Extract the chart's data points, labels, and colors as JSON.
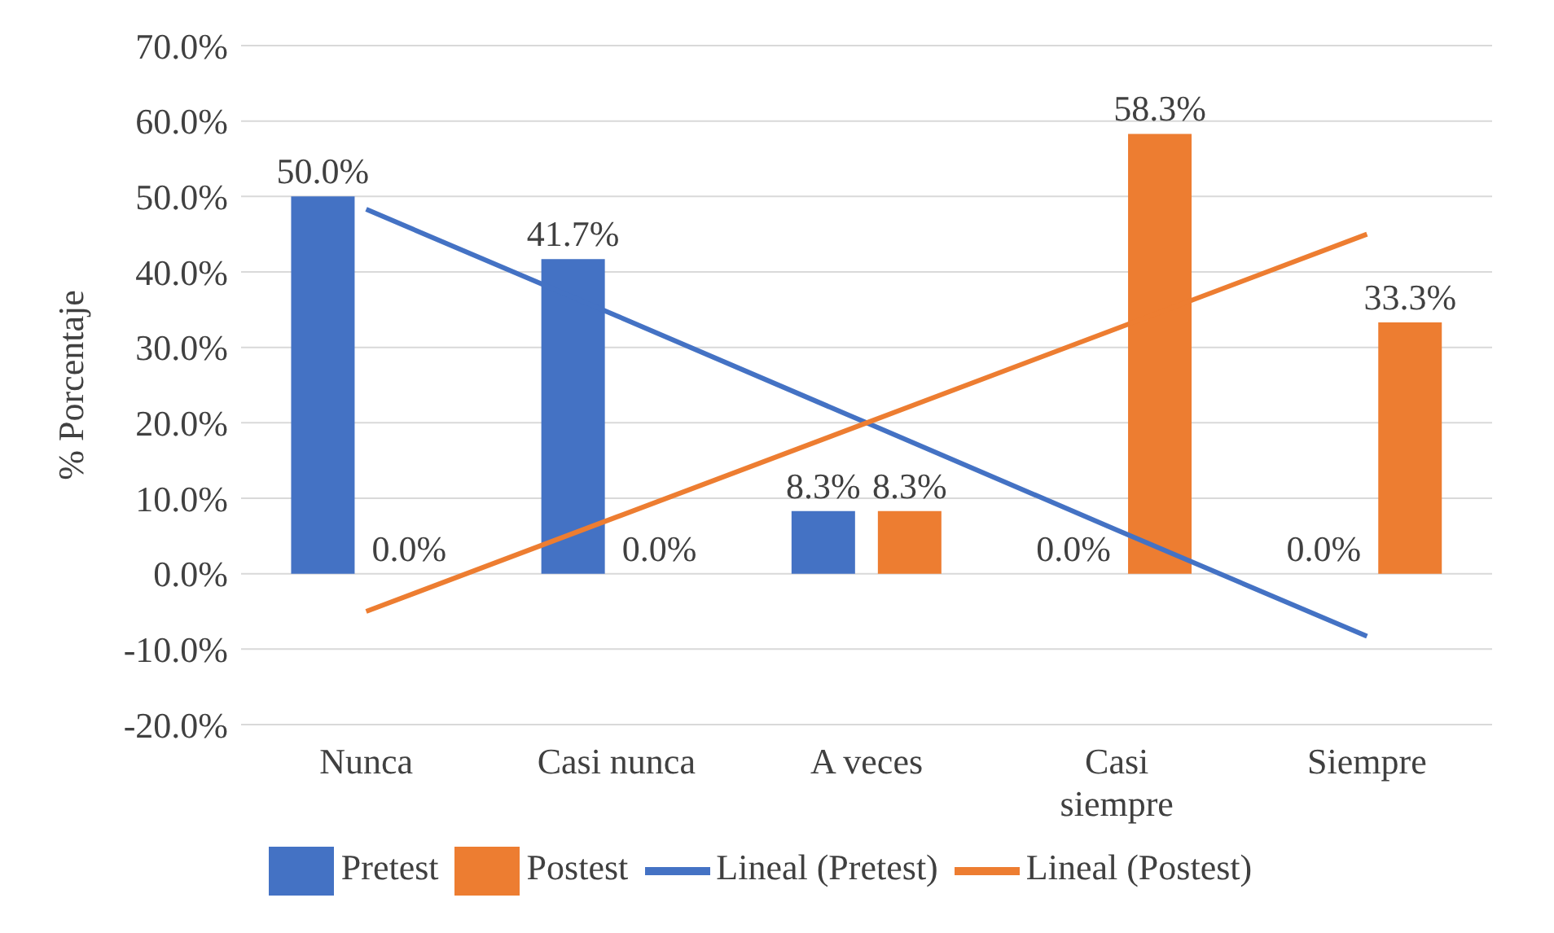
{
  "chart_data": {
    "type": "bar",
    "ylabel": "% Porcentaje",
    "categories": [
      "Nunca",
      "Casi nunca",
      "A veces",
      "Casi siempre",
      "Siempre"
    ],
    "series": [
      {
        "name": "Pretest",
        "color": "#4472c4",
        "values": [
          50,
          41.7,
          8.3,
          0,
          0
        ],
        "value_labels": [
          "50.0%",
          "41.7%",
          "8.3%",
          "0.0%",
          "0.0%"
        ]
      },
      {
        "name": "Postest",
        "color": "#ed7d31",
        "values": [
          0,
          0,
          8.3,
          58.3,
          33.3
        ],
        "value_labels": [
          "0.0%",
          "0.0%",
          "8.3%",
          "58.3%",
          "33.3%"
        ]
      },
      {
        "name": "Lineal (Pretest)",
        "type": "line",
        "color": "#4472c4",
        "values": [
          48.3,
          34.2,
          20,
          5.8,
          -8.3
        ]
      },
      {
        "name": "Lineal (Postest)",
        "type": "line",
        "color": "#ed7d31",
        "values": [
          -5,
          7.5,
          20,
          32.5,
          45
        ]
      }
    ],
    "ylim": [
      -20,
      70
    ],
    "yticks": [
      {
        "value": -20,
        "label": "-20.0%"
      },
      {
        "value": -10,
        "label": "-10.0%"
      },
      {
        "value": 0,
        "label": "0.0%"
      },
      {
        "value": 10,
        "label": "10.0%"
      },
      {
        "value": 20,
        "label": "20.0%"
      },
      {
        "value": 30,
        "label": "30.0%"
      },
      {
        "value": 40,
        "label": "40.0%"
      },
      {
        "value": 50,
        "label": "50.0%"
      },
      {
        "value": 60,
        "label": "60.0%"
      },
      {
        "value": 70,
        "label": "70.0%"
      }
    ],
    "grid": "y",
    "legend": "bottom",
    "marker": "none",
    "line_style": "solid"
  }
}
